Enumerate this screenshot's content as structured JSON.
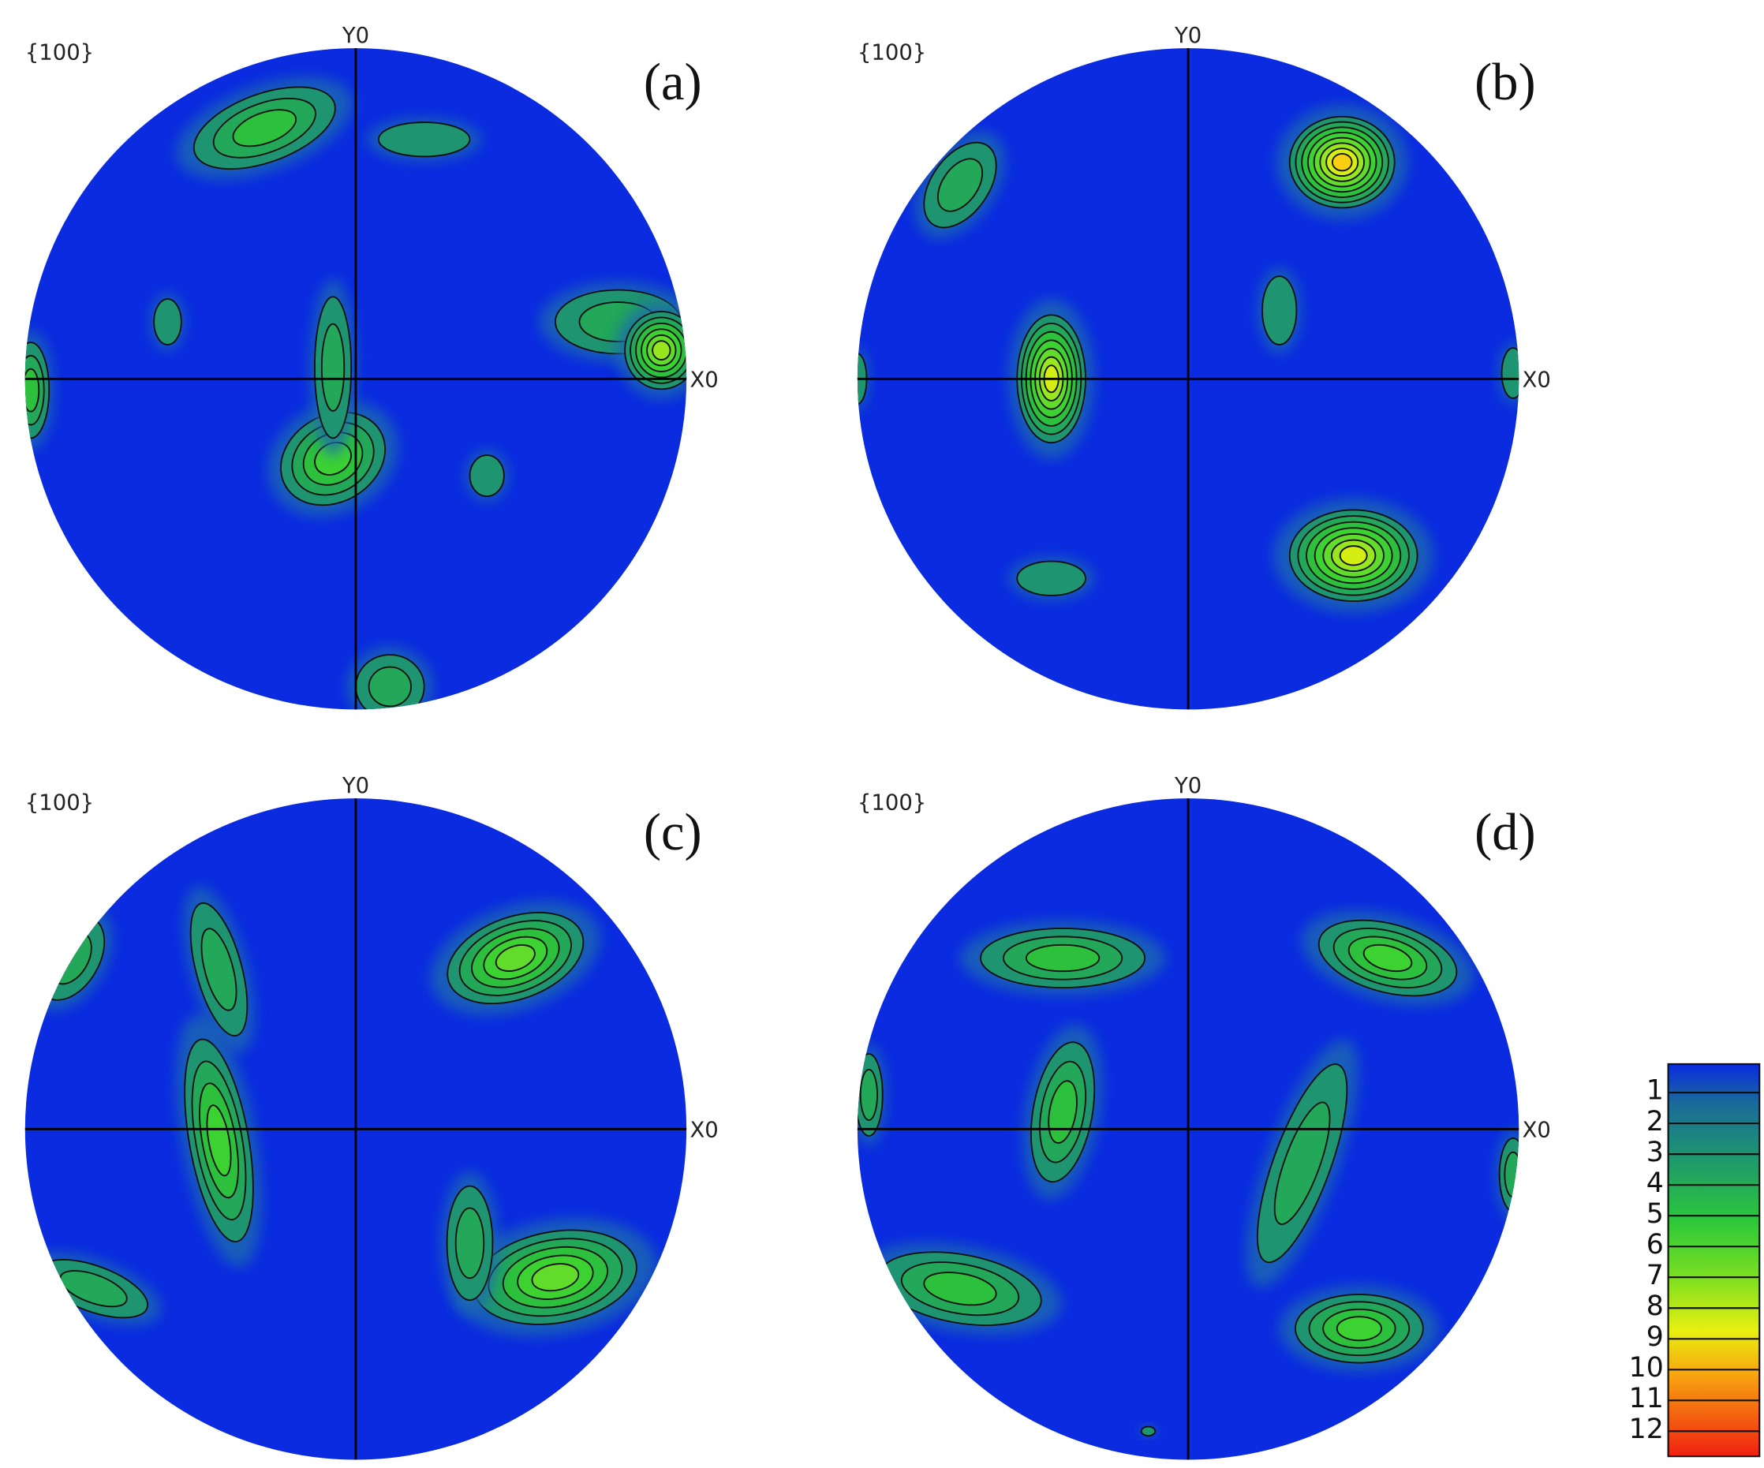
{
  "panels": [
    {
      "pole": "{100}",
      "y_axis": "Y0",
      "x_axis": "X0",
      "label": "(a)"
    },
    {
      "pole": "{100}",
      "y_axis": "Y0",
      "x_axis": "X0",
      "label": "(b)"
    },
    {
      "pole": "{100}",
      "y_axis": "Y0",
      "x_axis": "X0",
      "label": "(c)"
    },
    {
      "pole": "{100}",
      "y_axis": "Y0",
      "x_axis": "X0",
      "label": "(d)"
    }
  ],
  "legend": {
    "levels": [
      1,
      2,
      3,
      4,
      5,
      6,
      7,
      8,
      9,
      10,
      11,
      12
    ]
  }
}
